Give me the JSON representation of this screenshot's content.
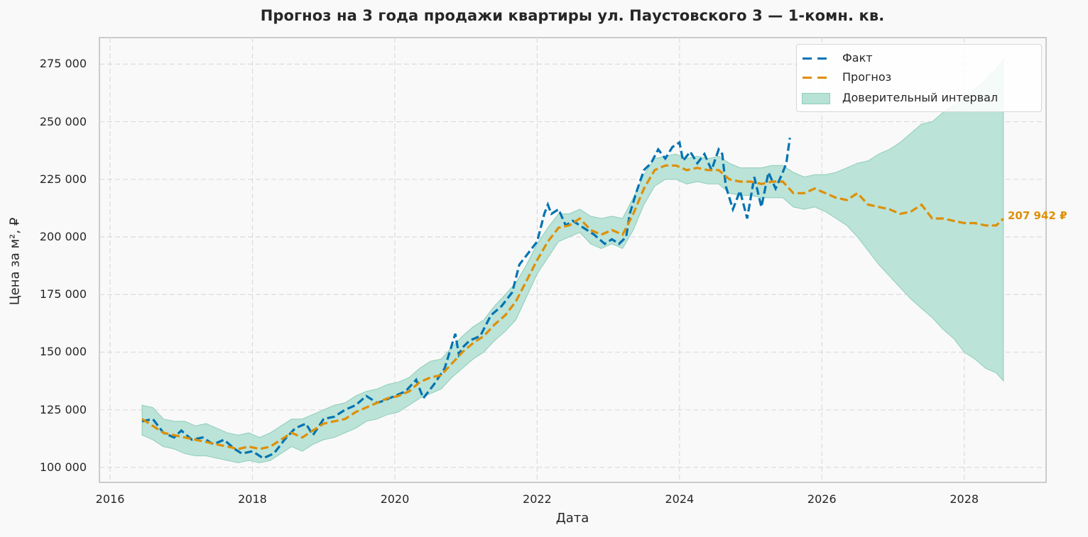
{
  "chart_data": {
    "type": "line",
    "title": "Прогноз на 3 года продажи квартиры  ул. Паустовского 3 — 1-комн. кв.",
    "xlabel": "Дата",
    "ylabel": "Цена за м², ₽",
    "xlim": [
      2015.85,
      2029.15
    ],
    "ylim": [
      93500,
      286500
    ],
    "grid": true,
    "legend_position": "upper right",
    "x_ticks": [
      "2016",
      "2018",
      "2020",
      "2022",
      "2024",
      "2026",
      "2028"
    ],
    "x_tick_values": [
      2016,
      2018,
      2020,
      2022,
      2024,
      2026,
      2028
    ],
    "y_ticks": [
      "100 000",
      "125 000",
      "150 000",
      "175 000",
      "200 000",
      "225 000",
      "250 000",
      "275 000"
    ],
    "y_tick_values": [
      100000,
      125000,
      150000,
      175000,
      200000,
      225000,
      250000,
      275000
    ],
    "colors": {
      "fact": "#0173b2",
      "forecast": "#de8f05",
      "interval_fill": "#b7e2d6",
      "interval_edge": "#8fcdb9"
    },
    "end_annotation": {
      "x": 2028.55,
      "y": 207942,
      "text": "207 942 ₽"
    },
    "series": [
      {
        "name": "Факт",
        "style": "dashed",
        "x": [
          2016.45,
          2016.6,
          2016.75,
          2016.9,
          2017.0,
          2017.15,
          2017.3,
          2017.45,
          2017.6,
          2017.75,
          2017.85,
          2018.0,
          2018.15,
          2018.3,
          2018.45,
          2018.6,
          2018.75,
          2018.85,
          2019.0,
          2019.15,
          2019.3,
          2019.45,
          2019.6,
          2019.75,
          2019.85,
          2020.0,
          2020.15,
          2020.3,
          2020.4,
          2020.55,
          2020.7,
          2020.85,
          2020.9,
          2020.95,
          2021.05,
          2021.2,
          2021.35,
          2021.5,
          2021.65,
          2021.75,
          2021.85,
          2022.0,
          2022.1,
          2022.15,
          2022.2,
          2022.3,
          2022.4,
          2022.5,
          2022.65,
          2022.8,
          2022.95,
          2023.05,
          2023.15,
          2023.25,
          2023.3,
          2023.4,
          2023.5,
          2023.6,
          2023.7,
          2023.8,
          2023.9,
          2024.0,
          2024.05,
          2024.15,
          2024.25,
          2024.35,
          2024.45,
          2024.55,
          2024.6,
          2024.65,
          2024.75,
          2024.85,
          2024.95,
          2025.05,
          2025.15,
          2025.25,
          2025.35,
          2025.45,
          2025.5,
          2025.55
        ],
        "values": [
          120000,
          121000,
          115000,
          113000,
          116000,
          112000,
          113000,
          110000,
          112000,
          108000,
          106000,
          107000,
          104000,
          106000,
          112000,
          117000,
          119000,
          114000,
          121000,
          122000,
          125000,
          127000,
          131000,
          128000,
          129000,
          131000,
          133000,
          138000,
          130000,
          136000,
          143000,
          158000,
          149000,
          152000,
          155000,
          157000,
          166000,
          170000,
          176000,
          188000,
          192000,
          198000,
          210000,
          214000,
          210000,
          212000,
          205000,
          207000,
          204000,
          201000,
          197000,
          199000,
          197000,
          200000,
          210000,
          220000,
          229000,
          232000,
          238000,
          234000,
          239000,
          241000,
          233000,
          237000,
          232000,
          236000,
          229000,
          238000,
          236000,
          222000,
          212000,
          220000,
          208000,
          226000,
          213000,
          228000,
          221000,
          228000,
          232000,
          243000
        ]
      },
      {
        "name": "Прогноз",
        "style": "dashed",
        "x": [
          2016.45,
          2016.6,
          2016.75,
          2016.9,
          2017.05,
          2017.2,
          2017.35,
          2017.5,
          2017.65,
          2017.8,
          2017.95,
          2018.1,
          2018.25,
          2018.4,
          2018.55,
          2018.7,
          2018.85,
          2019.0,
          2019.15,
          2019.3,
          2019.45,
          2019.6,
          2019.75,
          2019.9,
          2020.05,
          2020.2,
          2020.35,
          2020.5,
          2020.65,
          2020.8,
          2020.95,
          2021.1,
          2021.25,
          2021.4,
          2021.55,
          2021.7,
          2021.85,
          2022.0,
          2022.15,
          2022.3,
          2022.45,
          2022.6,
          2022.75,
          2022.9,
          2023.05,
          2023.2,
          2023.35,
          2023.5,
          2023.65,
          2023.8,
          2023.95,
          2024.1,
          2024.25,
          2024.4,
          2024.55,
          2024.7,
          2024.85,
          2025.0,
          2025.15,
          2025.3,
          2025.45,
          2025.6,
          2025.75,
          2025.9,
          2026.05,
          2026.2,
          2026.35,
          2026.5,
          2026.65,
          2026.8,
          2026.95,
          2027.1,
          2027.25,
          2027.4,
          2027.55,
          2027.7,
          2027.85,
          2028.0,
          2028.15,
          2028.3,
          2028.45,
          2028.55
        ],
        "values": [
          121000,
          118000,
          115000,
          114000,
          113000,
          112000,
          111000,
          110000,
          109000,
          108000,
          109000,
          108000,
          109000,
          112000,
          115000,
          113000,
          116000,
          119000,
          120000,
          121000,
          124000,
          126000,
          128000,
          130000,
          131000,
          133000,
          137000,
          139000,
          140000,
          145000,
          150000,
          154000,
          157000,
          162000,
          166000,
          172000,
          181000,
          190000,
          198000,
          204000,
          205000,
          208000,
          203000,
          201000,
          203000,
          201000,
          210000,
          221000,
          229000,
          231000,
          231000,
          229000,
          230000,
          229000,
          229000,
          225000,
          224000,
          224000,
          223000,
          224000,
          224000,
          219000,
          219000,
          221000,
          219000,
          217000,
          216000,
          219000,
          214000,
          213000,
          212000,
          210000,
          211000,
          214000,
          208000,
          208000,
          207000,
          206000,
          206000,
          205000,
          205000,
          207942
        ]
      },
      {
        "name": "Доверительный интервал",
        "style": "fill",
        "x": [
          2016.45,
          2016.6,
          2016.75,
          2016.9,
          2017.05,
          2017.2,
          2017.35,
          2017.5,
          2017.65,
          2017.8,
          2017.95,
          2018.1,
          2018.25,
          2018.4,
          2018.55,
          2018.7,
          2018.85,
          2019.0,
          2019.15,
          2019.3,
          2019.45,
          2019.6,
          2019.75,
          2019.9,
          2020.05,
          2020.2,
          2020.35,
          2020.5,
          2020.65,
          2020.8,
          2020.95,
          2021.1,
          2021.25,
          2021.4,
          2021.55,
          2021.7,
          2021.85,
          2022.0,
          2022.15,
          2022.3,
          2022.45,
          2022.6,
          2022.75,
          2022.9,
          2023.05,
          2023.2,
          2023.35,
          2023.5,
          2023.65,
          2023.8,
          2023.95,
          2024.1,
          2024.25,
          2024.4,
          2024.55,
          2024.7,
          2024.85,
          2025.0,
          2025.15,
          2025.3,
          2025.45,
          2025.6,
          2025.75,
          2025.9,
          2026.05,
          2026.2,
          2026.35,
          2026.5,
          2026.65,
          2026.8,
          2026.95,
          2027.1,
          2027.25,
          2027.4,
          2027.55,
          2027.7,
          2027.85,
          2028.0,
          2028.15,
          2028.3,
          2028.45,
          2028.55
        ],
        "upper": [
          127000,
          126000,
          121000,
          120000,
          120000,
          118000,
          119000,
          117000,
          115000,
          114000,
          115000,
          113000,
          115000,
          118000,
          121000,
          121000,
          123000,
          125000,
          127000,
          128000,
          131000,
          133000,
          134000,
          136000,
          137000,
          139000,
          143000,
          146000,
          147000,
          152000,
          157000,
          161000,
          164000,
          170000,
          175000,
          180000,
          188000,
          197000,
          204000,
          210000,
          210000,
          212000,
          209000,
          208000,
          209000,
          208000,
          217000,
          227000,
          234000,
          235000,
          236000,
          234000,
          235000,
          234000,
          235000,
          232000,
          230000,
          230000,
          230000,
          231000,
          231000,
          228000,
          226000,
          227000,
          227000,
          228000,
          230000,
          232000,
          233000,
          236000,
          238000,
          241000,
          245000,
          249000,
          250000,
          254000,
          257000,
          260000,
          264000,
          268000,
          273000,
          277000
        ],
        "lower": [
          114000,
          112000,
          109000,
          108000,
          106000,
          105000,
          105000,
          104000,
          103000,
          102000,
          103000,
          102000,
          103000,
          106000,
          109000,
          107000,
          110000,
          112000,
          113000,
          115000,
          117000,
          120000,
          121000,
          123000,
          124000,
          127000,
          130000,
          132000,
          134000,
          139000,
          143000,
          147000,
          150000,
          155000,
          159000,
          164000,
          174000,
          184000,
          191000,
          198000,
          200000,
          202000,
          197000,
          195000,
          197000,
          195000,
          203000,
          214000,
          222000,
          225000,
          225000,
          223000,
          224000,
          223000,
          223000,
          219000,
          218000,
          218000,
          217000,
          217000,
          217000,
          213000,
          212000,
          213000,
          211000,
          208000,
          205000,
          200000,
          194000,
          188000,
          183000,
          178000,
          173000,
          169000,
          165000,
          160000,
          156000,
          150000,
          147000,
          143000,
          141000,
          137500
        ]
      }
    ]
  }
}
